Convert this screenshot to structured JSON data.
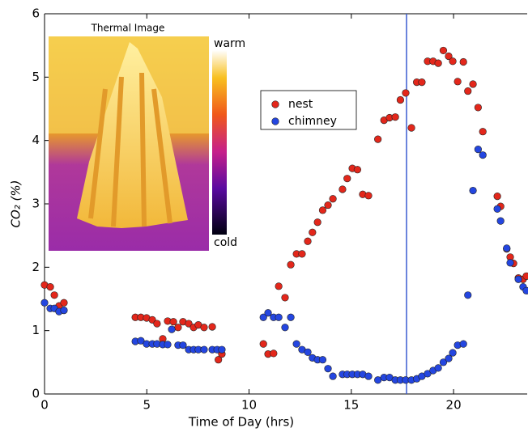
{
  "chart_data": {
    "type": "scatter",
    "x_label": "Time of Day (hrs)",
    "y_label": "CO₂ (%)",
    "xlim": [
      0,
      23.6
    ],
    "ylim": [
      0,
      6
    ],
    "xticks": [
      0,
      5,
      10,
      15,
      20
    ],
    "yticks": [
      0,
      1,
      2,
      3,
      4,
      5,
      6
    ],
    "vline": {
      "x": 17.7,
      "color": "#3a5bd0"
    },
    "legend": "upper center",
    "inset": {
      "title": "Thermal Image",
      "colorbar_labels": [
        "warm",
        "cold"
      ]
    },
    "series": [
      {
        "name": "nest",
        "color": "#e3271b",
        "x": [
          0,
          0.28,
          0.48,
          0.71,
          0.95,
          4.44,
          4.71,
          4.99,
          5.27,
          5.5,
          5.78,
          6.02,
          6.3,
          6.53,
          6.77,
          7.05,
          7.29,
          7.52,
          7.8,
          8.2,
          8.5,
          8.67,
          10.7,
          10.93,
          11.2,
          11.45,
          11.76,
          12.04,
          12.32,
          12.59,
          12.87,
          13.1,
          13.35,
          13.6,
          13.86,
          14.1,
          14.57,
          14.8,
          15.05,
          15.3,
          15.56,
          15.84,
          16.3,
          16.6,
          16.87,
          17.15,
          17.4,
          17.66,
          17.94,
          18.2,
          18.45,
          18.73,
          19.0,
          19.25,
          19.5,
          19.76,
          19.96,
          20.2,
          20.48,
          20.7,
          20.95,
          21.2,
          21.43,
          22.14,
          22.3,
          22.6,
          22.77,
          22.93,
          23.17,
          23.4,
          23.56
        ],
        "values": [
          1.72,
          1.69,
          1.56,
          1.39,
          1.44,
          1.21,
          1.21,
          1.2,
          1.17,
          1.11,
          0.87,
          1.15,
          1.14,
          1.05,
          1.14,
          1.11,
          1.05,
          1.09,
          1.05,
          1.06,
          0.54,
          0.63,
          0.79,
          0.63,
          0.64,
          1.7,
          1.52,
          2.04,
          2.21,
          2.21,
          2.41,
          2.55,
          2.71,
          2.9,
          2.98,
          3.08,
          3.23,
          3.4,
          3.56,
          3.54,
          3.15,
          3.13,
          4.02,
          4.32,
          4.36,
          4.37,
          4.64,
          4.75,
          4.2,
          4.92,
          4.92,
          5.25,
          5.25,
          5.22,
          5.42,
          5.33,
          5.25,
          4.93,
          5.24,
          4.78,
          4.89,
          4.52,
          4.14,
          3.12,
          2.96,
          2.29,
          2.16,
          2.06,
          1.83,
          1.81,
          1.86
        ]
      },
      {
        "name": "chimney",
        "color": "#2446e0",
        "x": [
          0,
          0.28,
          0.48,
          0.71,
          0.95,
          4.44,
          4.71,
          4.99,
          5.27,
          5.5,
          5.78,
          6.02,
          6.22,
          6.53,
          6.77,
          7.05,
          7.29,
          7.52,
          7.8,
          8.2,
          8.44,
          8.67,
          10.7,
          10.93,
          11.2,
          11.45,
          11.76,
          12.04,
          12.32,
          12.59,
          12.87,
          13.1,
          13.35,
          13.6,
          13.86,
          14.1,
          14.57,
          14.8,
          15.05,
          15.3,
          15.56,
          15.84,
          16.3,
          16.6,
          16.87,
          17.15,
          17.4,
          17.66,
          17.94,
          18.2,
          18.45,
          18.73,
          19.0,
          19.25,
          19.5,
          19.76,
          19.96,
          20.2,
          20.48,
          20.7,
          20.95,
          21.2,
          21.43,
          22.14,
          22.3,
          22.6,
          22.77,
          23.17,
          23.4,
          23.56
        ],
        "values": [
          1.44,
          1.35,
          1.35,
          1.3,
          1.32,
          0.83,
          0.84,
          0.79,
          0.79,
          0.79,
          0.78,
          0.78,
          1.02,
          0.77,
          0.77,
          0.7,
          0.7,
          0.7,
          0.7,
          0.7,
          0.7,
          0.7,
          1.21,
          1.28,
          1.21,
          1.21,
          1.05,
          1.21,
          0.79,
          0.7,
          0.66,
          0.57,
          0.54,
          0.54,
          0.4,
          0.28,
          0.31,
          0.31,
          0.31,
          0.31,
          0.31,
          0.28,
          0.22,
          0.26,
          0.26,
          0.22,
          0.22,
          0.22,
          0.22,
          0.24,
          0.28,
          0.32,
          0.37,
          0.41,
          0.5,
          0.56,
          0.65,
          0.77,
          0.79,
          1.56,
          3.21,
          3.86,
          3.77,
          2.92,
          2.73,
          2.3,
          2.07,
          1.81,
          1.69,
          1.63
        ]
      }
    ]
  }
}
